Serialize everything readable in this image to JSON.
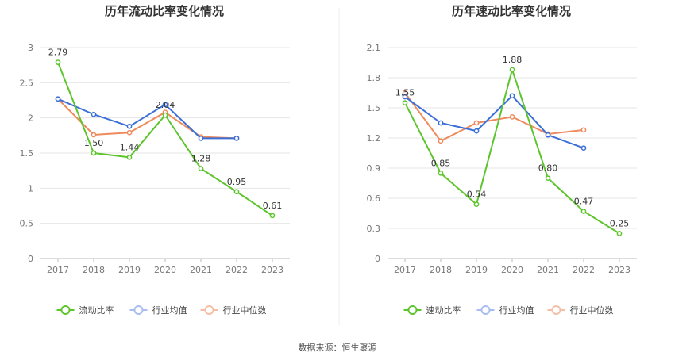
{
  "source_text": "数据来源：恒生聚源",
  "chart_data": [
    {
      "type": "line",
      "title": "历年流动比率变化情况",
      "categories": [
        "2017",
        "2018",
        "2019",
        "2020",
        "2021",
        "2022",
        "2023"
      ],
      "ylim": [
        0,
        3
      ],
      "yticks": [
        "0",
        "0.5",
        "1",
        "1.5",
        "2",
        "2.5",
        "3"
      ],
      "grid": true,
      "legend_position": "bottom",
      "series": [
        {
          "name": "流动比率",
          "color": "#5cc52c",
          "values": [
            2.79,
            1.5,
            1.44,
            2.04,
            1.28,
            0.95,
            0.61
          ],
          "labels": [
            "2.79",
            "1.50",
            "1.44",
            "2.04",
            "1.28",
            "0.95",
            "0.61"
          ]
        },
        {
          "name": "行业均值",
          "color": "#3b6fd8",
          "values": [
            2.27,
            2.05,
            1.88,
            2.19,
            1.71,
            1.71,
            null
          ]
        },
        {
          "name": "行业中位数",
          "color": "#ef8a5c",
          "values": [
            2.27,
            1.76,
            1.79,
            2.08,
            1.73,
            1.71,
            null
          ]
        }
      ]
    },
    {
      "type": "line",
      "title": "历年速动比率变化情况",
      "categories": [
        "2017",
        "2018",
        "2019",
        "2020",
        "2021",
        "2022",
        "2023"
      ],
      "ylim": [
        0,
        2.1
      ],
      "yticks": [
        "0",
        "0.3",
        "0.6",
        "0.9",
        "1.2",
        "1.5",
        "1.8",
        "2.1"
      ],
      "grid": true,
      "legend_position": "bottom",
      "series": [
        {
          "name": "速动比率",
          "color": "#5cc52c",
          "values": [
            1.55,
            0.85,
            0.54,
            1.88,
            0.8,
            0.47,
            0.25
          ],
          "labels": [
            "1.55",
            "0.85",
            "0.54",
            "1.88",
            "0.80",
            "0.47",
            "0.25"
          ]
        },
        {
          "name": "行业均值",
          "color": "#3b6fd8",
          "values": [
            1.61,
            1.35,
            1.27,
            1.62,
            1.23,
            1.1,
            null
          ]
        },
        {
          "name": "行业中位数",
          "color": "#ef8a5c",
          "values": [
            1.65,
            1.17,
            1.35,
            1.41,
            1.24,
            1.28,
            null
          ]
        }
      ]
    }
  ]
}
